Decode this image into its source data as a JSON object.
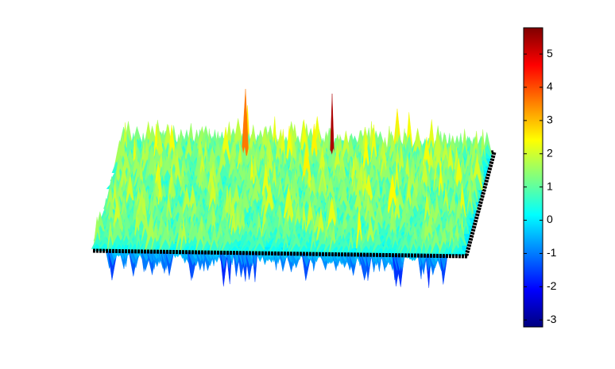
{
  "chart_data": {
    "type": "surface",
    "colormap": "jet",
    "clim": [
      -3.21,
      5.79
    ],
    "colorbar_ticks": [
      -3,
      -2,
      -1,
      0,
      1,
      2,
      3,
      4,
      5
    ]
  }
}
